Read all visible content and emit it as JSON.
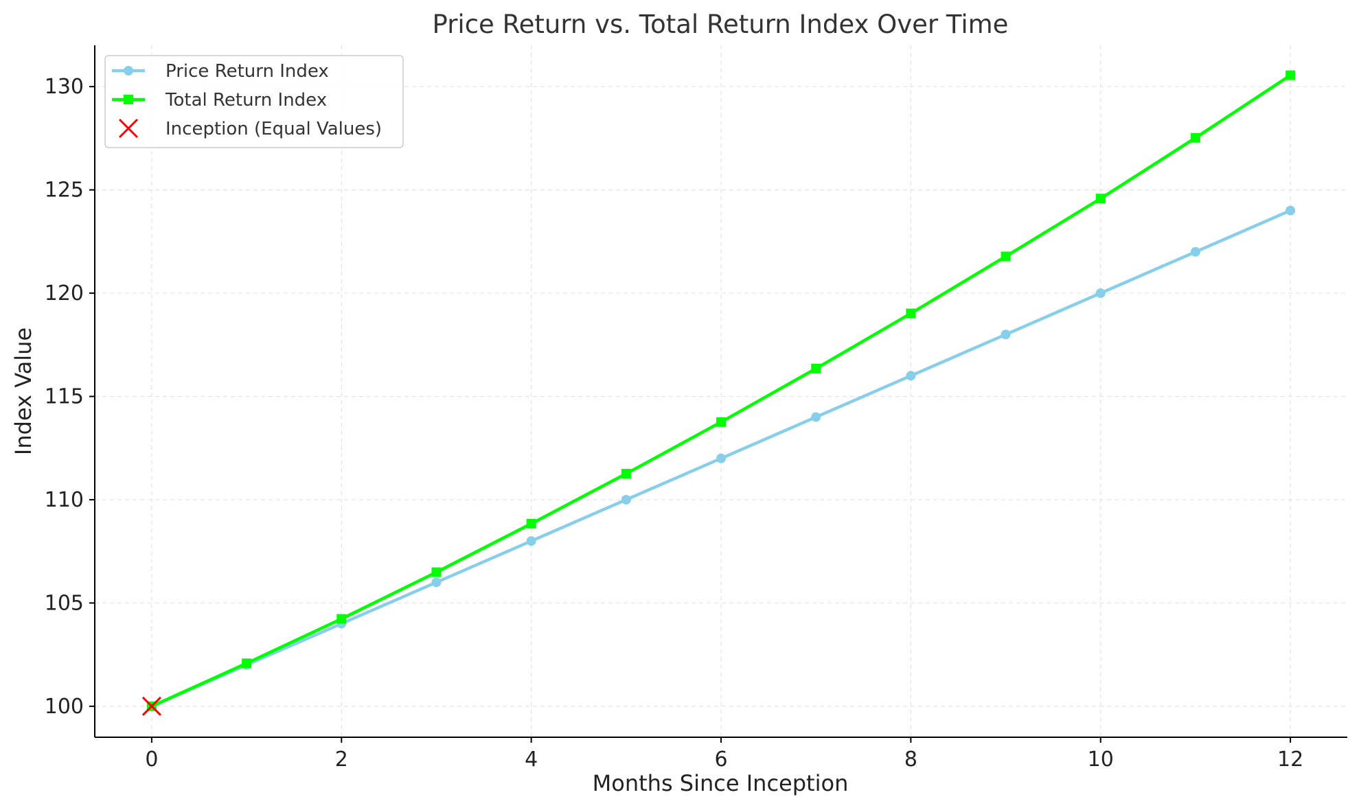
{
  "chart_data": {
    "type": "line",
    "title": "Price Return vs. Total Return Index Over Time",
    "xlabel": "Months Since Inception",
    "ylabel": "Index Value",
    "xlim": [
      -0.6,
      12.6
    ],
    "ylim": [
      98.5,
      132
    ],
    "x_ticks": [
      0,
      2,
      4,
      6,
      8,
      10,
      12
    ],
    "y_ticks": [
      100,
      105,
      110,
      115,
      120,
      125,
      130
    ],
    "grid": true,
    "legend_position": "top-left",
    "x": [
      0,
      1,
      2,
      3,
      4,
      5,
      6,
      7,
      8,
      9,
      10,
      11,
      12
    ],
    "series": [
      {
        "name": "Price Return Index",
        "color": "#87ceeb",
        "marker": "circle",
        "values": [
          100,
          102,
          104,
          106,
          108,
          110,
          112,
          114,
          116,
          118,
          120,
          122,
          124
        ]
      },
      {
        "name": "Total Return Index",
        "color": "#00ff00",
        "marker": "square",
        "values": [
          100,
          102.08,
          104.23,
          106.49,
          108.84,
          111.26,
          113.76,
          116.35,
          119.02,
          121.78,
          124.58,
          127.52,
          130.55
        ]
      }
    ],
    "annotations": [
      {
        "name": "Inception (Equal Values)",
        "marker": "x",
        "color": "#ff0000",
        "x": 0,
        "y": 100
      }
    ]
  }
}
